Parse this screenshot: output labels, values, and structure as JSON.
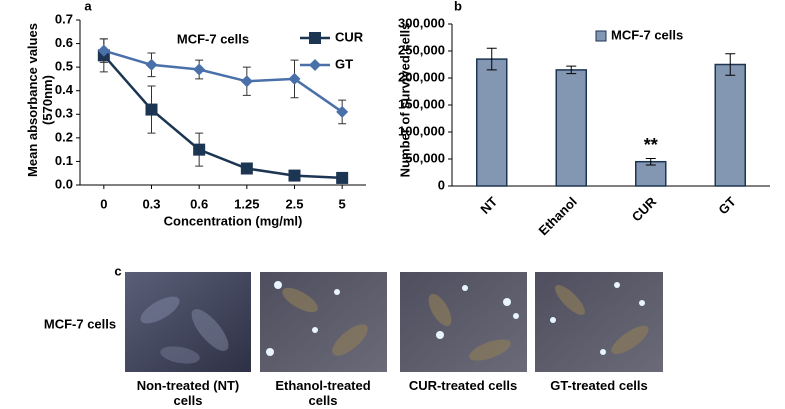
{
  "chart_data": [
    {
      "type": "line",
      "panel": "a",
      "title": "MCF-7 cells",
      "x_label": "Concentration (mg/ml)",
      "y_label": "Mean absorbance values (570nm)",
      "categories": [
        "0",
        "0.3",
        "0.6",
        "1.25",
        "2.5",
        "5"
      ],
      "series": [
        {
          "name": "CUR",
          "color": "#1c3553",
          "marker": "square",
          "values": [
            0.55,
            0.32,
            0.15,
            0.07,
            0.04,
            0.03
          ],
          "errors": [
            0.07,
            0.1,
            0.07,
            0.01,
            0.01,
            0.01
          ]
        },
        {
          "name": "GT",
          "color": "#4a70aa",
          "marker": "diamond",
          "values": [
            0.57,
            0.51,
            0.49,
            0.44,
            0.45,
            0.31
          ],
          "errors": [
            0.05,
            0.05,
            0.04,
            0.06,
            0.08,
            0.05
          ]
        }
      ],
      "ylim": [
        0,
        0.7
      ],
      "yticks": [
        {
          "value": 0,
          "label": "0.0"
        },
        0.1,
        0.2,
        0.3,
        0.4,
        0.5,
        0.6,
        0.7
      ]
    },
    {
      "type": "bar",
      "panel": "b",
      "y_label": "Number of survived cells",
      "categories": [
        "NT",
        "Ethanol",
        "CUR",
        "GT"
      ],
      "series": [
        {
          "name": "MCF-7 cells",
          "color": "#8497b2",
          "values": [
            235000,
            215000,
            45000,
            225000
          ],
          "errors": [
            20000,
            7000,
            6000,
            20000
          ]
        }
      ],
      "annotations": [
        {
          "category": 2,
          "text": "**"
        }
      ],
      "ylim": [
        0,
        300000
      ],
      "yticks": [
        0,
        {
          "value": 50000,
          "label": "50,000"
        },
        {
          "value": 100000,
          "label": "100,000"
        },
        {
          "value": 150000,
          "label": "150,000"
        },
        {
          "value": 200000,
          "label": "200,000"
        },
        {
          "value": 250000,
          "label": "250,000"
        },
        {
          "value": 300000,
          "label": "300,000"
        }
      ]
    }
  ],
  "panel_c": {
    "panel": "c",
    "row_label": "MCF-7 cells",
    "captions": [
      "Non-treated (NT) cells",
      "Ethanol-treated cells",
      "CUR-treated cells",
      "GT-treated cells"
    ]
  }
}
